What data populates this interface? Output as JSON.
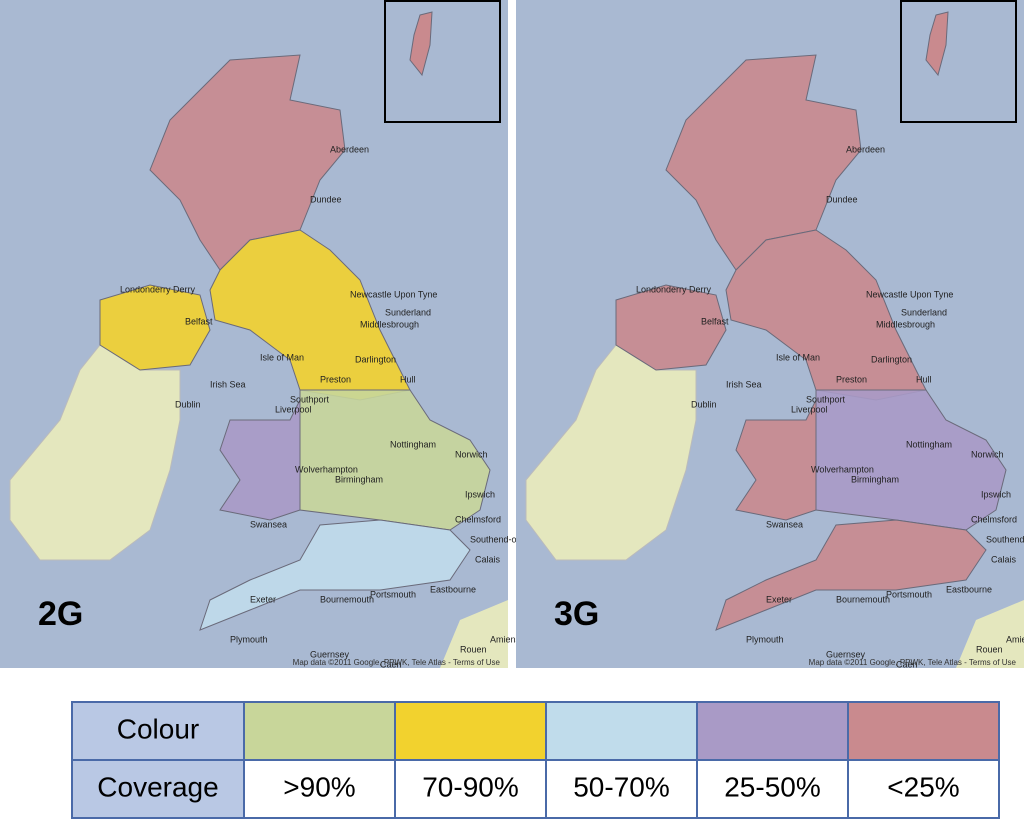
{
  "maps": [
    {
      "label": "2G",
      "attribution": "Map data ©2011 Google, PPWK, Tele Atlas - Terms of Use"
    },
    {
      "label": "3G",
      "attribution": "Map data ©2011 Google, PPWK, Tele Atlas - Terms of Use"
    }
  ],
  "places": [
    "Aberdeen",
    "Dundee",
    "Newcastle Upon Tyne",
    "Sunderland",
    "Middlesbrough",
    "Darlington",
    "Londonderry Derry",
    "Belfast",
    "Isle of Man",
    "Irish Sea",
    "Southport",
    "Preston",
    "Liverpool",
    "Dublin",
    "Hull",
    "Nottingham",
    "Wolverhampton",
    "Birmingham",
    "Norwich",
    "Ipswich",
    "Chelmsford",
    "Southend-on-Sea",
    "Swansea",
    "Calais",
    "Exeter",
    "Plymouth",
    "Bournemouth",
    "Portsmouth",
    "Eastbourne",
    "Guernsey",
    "Rouen",
    "Amiens",
    "Caen"
  ],
  "legend": {
    "colour_header": "Colour",
    "coverage_header": "Coverage",
    "items": [
      {
        "color": "#c8d69a",
        "coverage": ">90%"
      },
      {
        "color": "#f2d22e",
        "coverage": "70-90%"
      },
      {
        "color": "#c0dceb",
        "coverage": "50-70%"
      },
      {
        "color": "#a99ac6",
        "coverage": "25-50%"
      },
      {
        "color": "#c98a8e",
        "coverage": "<25%"
      }
    ]
  }
}
